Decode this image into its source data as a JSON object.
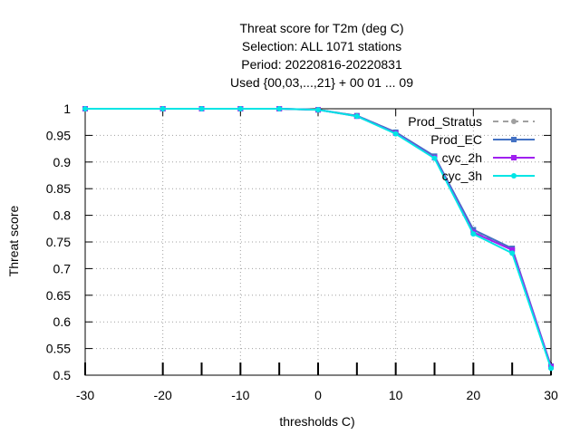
{
  "chart_data": {
    "type": "line",
    "title_lines": [
      "Threat score  for T2m (deg C)",
      "Selection: ALL    1071 stations",
      "Period: 20220816-20220831",
      "Used {00,03,...,21} + 00 01 ... 09"
    ],
    "xlabel": "thresholds C)",
    "ylabel": "Threat score",
    "xlim": [
      -30,
      30
    ],
    "ylim": [
      0.5,
      1.0
    ],
    "x_ticks": [
      -30,
      -20,
      -10,
      0,
      10,
      20,
      30
    ],
    "y_ticks": [
      0.5,
      0.55,
      0.6,
      0.65,
      0.7,
      0.75,
      0.8,
      0.85,
      0.9,
      0.95,
      1
    ],
    "grid": true,
    "legend_position": "top-right",
    "x": [
      -30,
      -20,
      -15,
      -10,
      -5,
      0,
      5,
      10,
      15,
      20,
      25,
      30
    ],
    "series": [
      {
        "name": "Prod_Stratus",
        "color": "#a0a0a0",
        "dashed": true,
        "marker": "circle",
        "values": [
          1.0,
          1.0,
          1.0,
          1.0,
          1.0,
          0.998,
          0.987,
          0.956,
          0.91,
          0.772,
          0.737,
          0.515
        ]
      },
      {
        "name": "Prod_EC",
        "color": "#4472c4",
        "dashed": false,
        "marker": "square",
        "values": [
          1.0,
          1.0,
          1.0,
          1.0,
          1.0,
          0.998,
          0.987,
          0.956,
          0.911,
          0.773,
          0.738,
          0.517
        ]
      },
      {
        "name": "cyc_2h",
        "color": "#a020f0",
        "dashed": false,
        "marker": "square",
        "values": [
          1.0,
          1.0,
          1.0,
          1.0,
          1.0,
          0.998,
          0.986,
          0.954,
          0.908,
          0.768,
          0.735,
          0.516
        ]
      },
      {
        "name": "cyc_3h",
        "color": "#00e5e5",
        "dashed": false,
        "marker": "circle",
        "values": [
          1.0,
          1.0,
          1.0,
          1.0,
          1.0,
          0.998,
          0.986,
          0.953,
          0.907,
          0.765,
          0.729,
          0.513
        ]
      }
    ]
  }
}
